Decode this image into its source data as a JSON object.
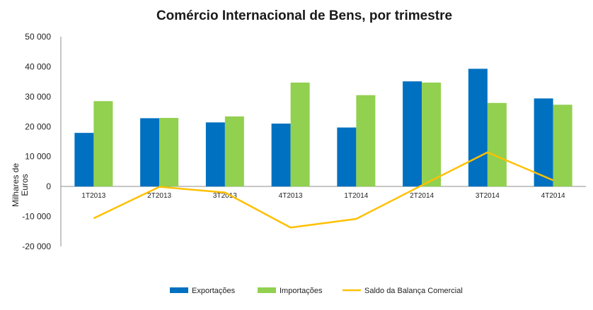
{
  "chart_data": {
    "type": "bar",
    "title": "Comércio Internacional de Bens, por trimestre",
    "ylabel": "Milhares de Euros",
    "ylabel_lines": [
      "Milhares de",
      "Euros"
    ],
    "categories": [
      "1T2013",
      "2T2013",
      "3T2013",
      "4T2013",
      "1T2014",
      "2T2014",
      "3T2014",
      "4T2014"
    ],
    "yticks": [
      "50 000",
      "40 000",
      "30 000",
      "20 000",
      "10 000",
      "0",
      "-10 000",
      "-20 000"
    ],
    "ylim": [
      -20000,
      50000
    ],
    "grid": false,
    "legend_position": "bottom",
    "series": [
      {
        "name": "Exportações",
        "kind": "bar",
        "color": "#0070C0",
        "values": [
          17900,
          22800,
          21400,
          21000,
          19700,
          35100,
          39300,
          29400
        ]
      },
      {
        "name": "Importações",
        "kind": "bar",
        "color": "#92D050",
        "values": [
          28500,
          22900,
          23400,
          34700,
          30500,
          34700,
          27900,
          27300
        ]
      },
      {
        "name": "Saldo da Balança Comercial",
        "kind": "line",
        "color": "#FFC000",
        "values": [
          -10600,
          -100,
          -2000,
          -13700,
          -10800,
          400,
          11400,
          2100
        ]
      }
    ]
  }
}
